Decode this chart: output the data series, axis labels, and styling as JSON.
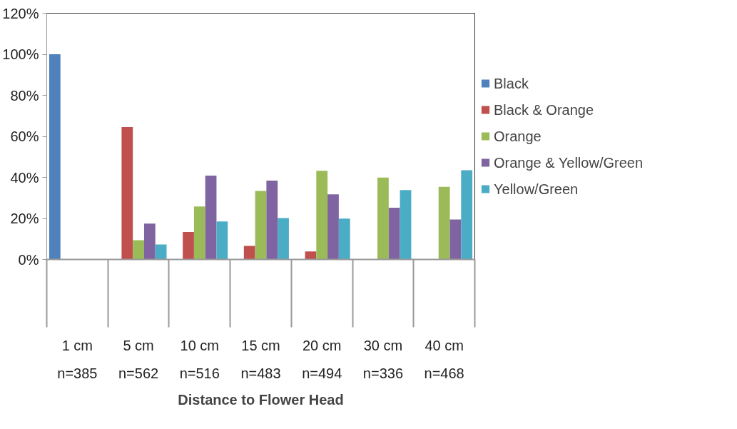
{
  "chart_data": {
    "type": "bar",
    "xlabel": "Distance to Flower Head",
    "categories": [
      "1 cm\nn=385",
      "5 cm\nn=562",
      "10 cm\nn=516",
      "15 cm\nn=483",
      "20 cm\nn=494",
      "30 cm\nn=336",
      "40 cm\nn=468"
    ],
    "series": [
      {
        "name": "Black",
        "color": "#4f81bd",
        "values": [
          100,
          0,
          0,
          0,
          0,
          0,
          0
        ]
      },
      {
        "name": "Black & Orange",
        "color": "#c0504d",
        "values": [
          0,
          64.5,
          13.4,
          6.6,
          3.9,
          0,
          0.2
        ]
      },
      {
        "name": "Orange",
        "color": "#9bbb59",
        "values": [
          0,
          9.4,
          25.8,
          33.4,
          43.2,
          39.9,
          35.4
        ]
      },
      {
        "name": "Orange & Yellow/Green",
        "color": "#8064a2",
        "values": [
          0,
          17.5,
          40.9,
          38.4,
          31.7,
          25.2,
          19.5
        ]
      },
      {
        "name": "Yellow/Green",
        "color": "#4bacc6",
        "values": [
          0,
          7.3,
          18.5,
          20.2,
          19.9,
          33.8,
          43.5
        ]
      }
    ],
    "ylim": [
      0,
      120
    ],
    "yticks": [
      {
        "value": 0,
        "label": "0%"
      },
      {
        "value": 20,
        "label": "20%"
      },
      {
        "value": 40,
        "label": "40%"
      },
      {
        "value": 60,
        "label": "60%"
      },
      {
        "value": 80,
        "label": "80%"
      },
      {
        "value": 100,
        "label": "100%"
      },
      {
        "value": 120,
        "label": "120%"
      }
    ],
    "grid": false,
    "legend": "right"
  }
}
